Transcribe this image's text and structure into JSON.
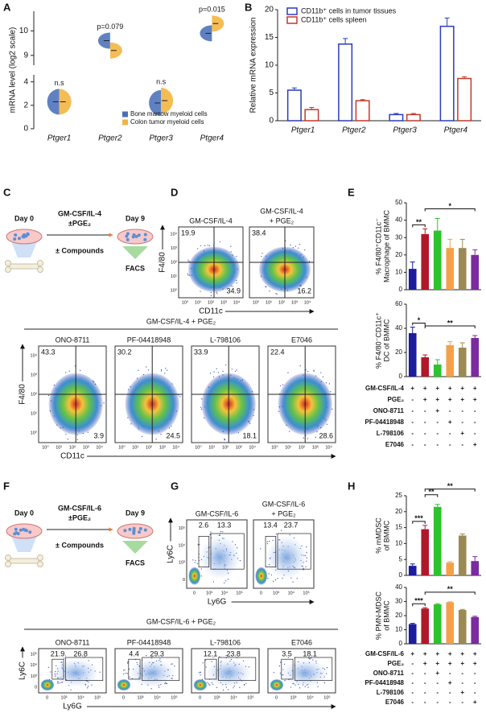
{
  "panel_labels": [
    "A",
    "B",
    "C",
    "D",
    "E",
    "F",
    "G",
    "H"
  ],
  "chart_data": [
    {
      "type": "violin",
      "ylabel": [
        "mRNA level (log2 scale)"
      ],
      "categories": [
        "Ptger1",
        "Ptger2",
        "Ptger3",
        "Ptger4"
      ],
      "series": [
        {
          "name": "Bone marrow myeloid cells",
          "color": "#4a6fb8",
          "values": [
            2.3,
            9.6,
            2.2,
            9.9
          ]
        },
        {
          "name": "Colon tumor myeloid cells",
          "color": "#f2b43c",
          "values": [
            2.3,
            9.2,
            2.4,
            10.3
          ]
        }
      ],
      "annotations": [
        "n.s",
        "p=0.079",
        "n.s",
        "p=0.015"
      ],
      "ylim": [
        0,
        10.8
      ],
      "axis_break": [
        4.6,
        8.6
      ],
      "yticks": [
        0,
        2,
        4,
        9,
        10
      ]
    },
    {
      "type": "bar",
      "ylabel": [
        "Relative mRNA expression"
      ],
      "categories": [
        "Ptger1",
        "Ptger2",
        "Ptger3",
        "Ptger4"
      ],
      "series": [
        {
          "name": "CD11b⁺ cells in tumor tissues",
          "color": "#2b3db8",
          "values": [
            5.5,
            13.8,
            1.1,
            17
          ],
          "errors": [
            0.4,
            1,
            0.2,
            1.5
          ]
        },
        {
          "name": "CD11b⁺ cells spleen",
          "color": "#c0392b",
          "values": [
            2,
            3.6,
            1.1,
            7.6
          ],
          "errors": [
            0.4,
            0.2,
            0.2,
            0.3
          ]
        }
      ],
      "ylim": [
        0,
        20
      ],
      "yticks": [
        0,
        5,
        10,
        15,
        20
      ]
    },
    {
      "type": "bar",
      "ylabel": [
        "% F4/80⁺CD11c⁻",
        "Macrophage of BMMC"
      ],
      "values": [
        12,
        32,
        34,
        24,
        24,
        20
      ],
      "errors": [
        4,
        3,
        7,
        5,
        5,
        3
      ],
      "colors": [
        "#1c1c9e",
        "#b0182a",
        "#2ec22e",
        "#f4a04a",
        "#9c8a55",
        "#7b2aa0"
      ],
      "ylim": [
        0,
        50
      ],
      "yticks": [
        0,
        10,
        20,
        30,
        40,
        50
      ],
      "significance": [
        {
          "label": "**",
          "bars": [
            0,
            1
          ]
        },
        {
          "label": "*",
          "bars": [
            1,
            5
          ]
        }
      ]
    },
    {
      "type": "bar",
      "ylabel": [
        "% F4/80⁻CD11c⁺",
        "DC of BMMC"
      ],
      "values": [
        36,
        16,
        10,
        26,
        24,
        32
      ],
      "errors": [
        5,
        2,
        4,
        3,
        4,
        2
      ],
      "colors": [
        "#1c1c9e",
        "#b0182a",
        "#2ec22e",
        "#f4a04a",
        "#9c8a55",
        "#7b2aa0"
      ],
      "ylim": [
        0,
        60
      ],
      "yticks": [
        0,
        20,
        40,
        60
      ],
      "significance": [
        {
          "label": "*",
          "bars": [
            0,
            1
          ]
        },
        {
          "label": "**",
          "bars": [
            1,
            5
          ]
        }
      ]
    },
    {
      "type": "bar",
      "ylabel": [
        "% mMDSC",
        "of BMMC"
      ],
      "values": [
        3,
        14.5,
        21.5,
        4,
        12.5,
        4.5
      ],
      "errors": [
        0.6,
        1.2,
        0.8,
        0.3,
        0.5,
        1.4
      ],
      "colors": [
        "#1c1c9e",
        "#b0182a",
        "#2ec22e",
        "#f4a04a",
        "#9c8a55",
        "#7b2aa0"
      ],
      "ylim": [
        0,
        25
      ],
      "yticks": [
        0,
        5,
        10,
        15,
        20,
        25
      ],
      "significance": [
        {
          "label": "***",
          "bars": [
            0,
            1
          ]
        },
        {
          "label": "**",
          "bars": [
            1,
            2
          ]
        },
        {
          "label": "**",
          "bars": [
            1,
            5
          ]
        }
      ]
    },
    {
      "type": "bar",
      "ylabel": [
        "% PMN-MDSC",
        "of BMMC"
      ],
      "values": [
        14,
        25,
        28,
        29.5,
        24,
        19
      ],
      "errors": [
        0.5,
        0.6,
        0.5,
        0.3,
        0.4,
        0.6
      ],
      "colors": [
        "#1c1c9e",
        "#b0182a",
        "#2ec22e",
        "#f4a04a",
        "#9c8a55",
        "#7b2aa0"
      ],
      "ylim": [
        0,
        40
      ],
      "yticks": [
        0,
        10,
        20,
        30,
        40
      ],
      "significance": [
        {
          "label": "***",
          "bars": [
            0,
            1
          ]
        },
        {
          "label": "**",
          "bars": [
            1,
            5
          ]
        }
      ]
    }
  ],
  "conditions_E": {
    "rows": [
      {
        "label": "GM-CSF/IL-4",
        "marks": [
          "+",
          "+",
          "+",
          "+",
          "+",
          "+"
        ]
      },
      {
        "label": "PGE₂",
        "marks": [
          "-",
          "+",
          "+",
          "+",
          "+",
          "+"
        ]
      },
      {
        "label": "ONO-8711",
        "marks": [
          "-",
          "-",
          "+",
          "-",
          "-",
          "-"
        ]
      },
      {
        "label": "PF-04418948",
        "marks": [
          "-",
          "-",
          "-",
          "+",
          "-",
          "-"
        ]
      },
      {
        "label": "L-798106",
        "marks": [
          "-",
          "-",
          "-",
          "-",
          "+",
          "-"
        ]
      },
      {
        "label": "E7046",
        "marks": [
          "-",
          "-",
          "-",
          "-",
          "-",
          "+"
        ]
      }
    ]
  },
  "conditions_H": {
    "rows": [
      {
        "label": "GM-CSF/IL-6",
        "marks": [
          "+",
          "+",
          "+",
          "+",
          "+",
          "+"
        ]
      },
      {
        "label": "PGE₂",
        "marks": [
          "-",
          "+",
          "+",
          "+",
          "+",
          "+"
        ]
      },
      {
        "label": "ONO-8711",
        "marks": [
          "-",
          "-",
          "+",
          "-",
          "-",
          "-"
        ]
      },
      {
        "label": "PF-04418948",
        "marks": [
          "-",
          "-",
          "-",
          "+",
          "-",
          "-"
        ]
      },
      {
        "label": "L-798106",
        "marks": [
          "-",
          "-",
          "-",
          "-",
          "+",
          "-"
        ]
      },
      {
        "label": "E7046",
        "marks": [
          "-",
          "-",
          "-",
          "-",
          "-",
          "+"
        ]
      }
    ]
  },
  "diagram_C": {
    "day_start": "Day 0",
    "treatment": [
      "GM-CSF/IL-4",
      "±PGE₂"
    ],
    "compounds": "± Compounds",
    "day_end": "Day 9",
    "readout": "FACS"
  },
  "diagram_F": {
    "day_start": "Day 0",
    "treatment": [
      "GM-CSF/IL-6",
      "±PGE₂"
    ],
    "compounds": "± Compounds",
    "day_end": "Day 9",
    "readout": "FACS"
  },
  "flow_D": {
    "x_label": "CD11c",
    "y_label": "F4/80",
    "ticks": [
      "10⁰",
      "10¹",
      "10²",
      "10³",
      "10⁴"
    ],
    "group_title": "GM-CSF/IL-4 + PGE₂",
    "plots": [
      {
        "title": [
          "GM-CSF/IL-4"
        ],
        "upper_left": 19.9,
        "lower_right": 34.9
      },
      {
        "title": [
          "GM-CSF/IL-4",
          "+ PGE₂"
        ],
        "upper_left": 38.4,
        "lower_right": 16.2
      },
      {
        "title": [
          "ONO-8711"
        ],
        "upper_left": 43.3,
        "lower_right": 3.9
      },
      {
        "title": [
          "PF-04418948"
        ],
        "upper_left": 30.2,
        "lower_right": 24.5
      },
      {
        "title": [
          "L-798106"
        ],
        "upper_left": 33.9,
        "lower_right": 18.1
      },
      {
        "title": [
          "E7046"
        ],
        "upper_left": 22.4,
        "lower_right": 28.6
      }
    ]
  },
  "flow_G": {
    "x_label": "Ly6G",
    "y_label": "Ly6C",
    "ticks": [
      "0",
      "10³",
      "10⁴",
      "10⁵"
    ],
    "group_title": "GM-CSF/IL-6 + PGE₂",
    "plots": [
      {
        "title": [
          "GM-CSF/IL-6"
        ],
        "gate_left": 2.6,
        "gate_right": 13.3
      },
      {
        "title": [
          "GM-CSF/IL-6",
          "+ PGE₂"
        ],
        "gate_left": 13.4,
        "gate_right": 23.7
      },
      {
        "title": [
          "ONO-8711"
        ],
        "gate_left": 21.9,
        "gate_right": 26.8
      },
      {
        "title": [
          "PF-04418948"
        ],
        "gate_left": 4.4,
        "gate_right": 29.3
      },
      {
        "title": [
          "L-798106"
        ],
        "gate_left": 12.1,
        "gate_right": 23.8
      },
      {
        "title": [
          "E7046"
        ],
        "gate_left": 3.5,
        "gate_right": 18.1
      }
    ]
  }
}
